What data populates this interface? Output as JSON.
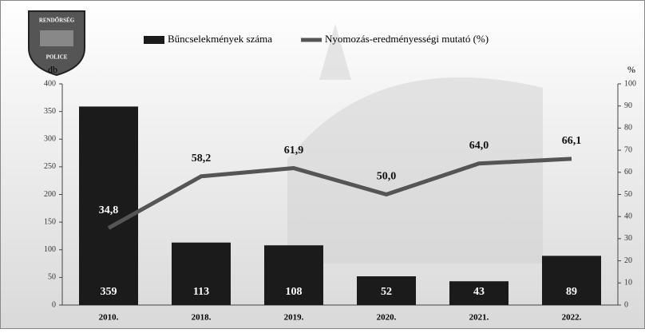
{
  "logo": {
    "top": "RENDŐRSÉG",
    "bottom": "POLICE"
  },
  "chart_data": {
    "type": "bar",
    "categories": [
      "2010.",
      "2018.",
      "2019.",
      "2020.",
      "2021.",
      "2022."
    ],
    "series": [
      {
        "name": "Bűncselekmények száma",
        "type": "bar",
        "color": "#1b1b1b",
        "values": [
          359,
          113,
          108,
          52,
          43,
          89
        ]
      },
      {
        "name": "Nyomozás-eredményességi mutató (%)",
        "type": "line",
        "axis": "y2",
        "color": "#555555",
        "values": [
          34.8,
          58.2,
          61.9,
          50.0,
          64.0,
          66.1
        ],
        "value_labels": [
          "34,8",
          "58,2",
          "61,9",
          "50,0",
          "64,0",
          "66,1"
        ]
      }
    ],
    "ylabel": "db",
    "y2label": "%",
    "ylim": [
      0,
      400
    ],
    "yticks": [
      0,
      50,
      100,
      150,
      200,
      250,
      300,
      350,
      400
    ],
    "y2lim": [
      0,
      100
    ],
    "y2ticks": [
      0,
      10,
      20,
      30,
      40,
      50,
      60,
      70,
      80,
      90,
      100
    ]
  }
}
